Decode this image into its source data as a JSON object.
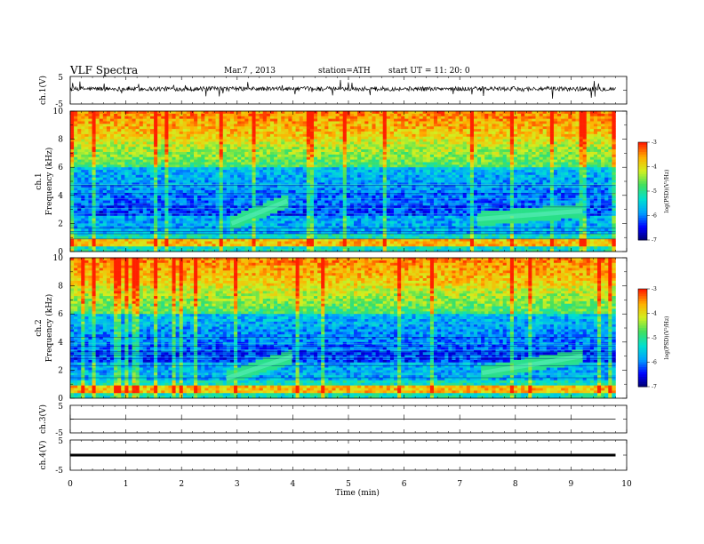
{
  "header": {
    "title": "VLF  Spectra",
    "date": "Mar.7  , 2013",
    "station": "station=ATH",
    "start_ut": "start  UT  =    11: 20: 0"
  },
  "chart_data": [
    {
      "type": "line",
      "panel": "ch1-waveform",
      "ylabel": "ch.1(V)",
      "yticks": [
        "5",
        "-5"
      ],
      "ylim": [
        -5,
        5
      ],
      "x_range_min": [
        0,
        9.8
      ],
      "description_level": 0.5,
      "color": "#000000"
    },
    {
      "type": "heatmap",
      "panel": "ch1-spectrogram",
      "ylabel_lines": [
        "ch.1",
        "Frequency  (kHz)"
      ],
      "ylim": [
        0,
        10
      ],
      "yticks": [
        0,
        2,
        4,
        6,
        8,
        10
      ],
      "x_range_min": [
        0,
        9.8
      ],
      "colorbar": {
        "label": "log(PSD)(V²/Hz)",
        "range": [
          -7,
          -3
        ],
        "ticks": [
          "-3",
          "-4",
          "-5",
          "-6",
          "-7"
        ]
      },
      "events": [
        {
          "type": "rising-tone",
          "t_start_min": 2.9,
          "t_end_min": 3.9,
          "f_start_khz": 2.0,
          "f_end_khz": 3.6
        },
        {
          "type": "rising-tone",
          "t_start_min": 7.3,
          "t_end_min": 9.2,
          "f_start_khz": 2.3,
          "f_end_khz": 2.9
        }
      ]
    },
    {
      "type": "heatmap",
      "panel": "ch2-spectrogram",
      "ylabel_lines": [
        "ch.2",
        "Frequency  (kHz)"
      ],
      "ylim": [
        0,
        10
      ],
      "yticks": [
        0,
        2,
        4,
        6,
        8,
        10
      ],
      "x_range_min": [
        0,
        9.8
      ],
      "colorbar": {
        "label": "log(PSD)(V²/Hz)",
        "range": [
          -7,
          -3
        ],
        "ticks": [
          "-3",
          "-4",
          "-5",
          "-6",
          "-7"
        ]
      },
      "events": [
        {
          "type": "rising-tone",
          "t_start_min": 2.8,
          "t_end_min": 4.0,
          "f_start_khz": 1.4,
          "f_end_khz": 3.0
        },
        {
          "type": "rising-tone",
          "t_start_min": 7.4,
          "t_end_min": 9.2,
          "f_start_khz": 1.8,
          "f_end_khz": 3.0
        }
      ]
    },
    {
      "type": "line",
      "panel": "ch3-waveform",
      "ylabel": "ch.3(V)",
      "yticks": [
        "5",
        "-5"
      ],
      "ylim": [
        -5,
        5
      ],
      "x_range_min": [
        0,
        9.8
      ],
      "level": 0.0,
      "color": "#000000"
    },
    {
      "type": "line",
      "panel": "ch4-waveform",
      "ylabel": "ch.4(V)",
      "yticks": [
        "5",
        "-5"
      ],
      "ylim": [
        -5,
        5
      ],
      "x_range_min": [
        0,
        9.8
      ],
      "level": 0.0,
      "color": "#000000"
    }
  ],
  "xaxis": {
    "label": "Time  (min)",
    "ticks": [
      "0",
      "1",
      "2",
      "3",
      "4",
      "5",
      "6",
      "7",
      "8",
      "9",
      "10"
    ],
    "xlim": [
      0,
      10
    ]
  },
  "colors": {
    "background": "#ffffff",
    "axes": "#000000",
    "colormap": [
      "#000066",
      "#0000ff",
      "#00a0ff",
      "#00e0d0",
      "#40e060",
      "#d0f020",
      "#ffb000",
      "#ff2000"
    ]
  }
}
